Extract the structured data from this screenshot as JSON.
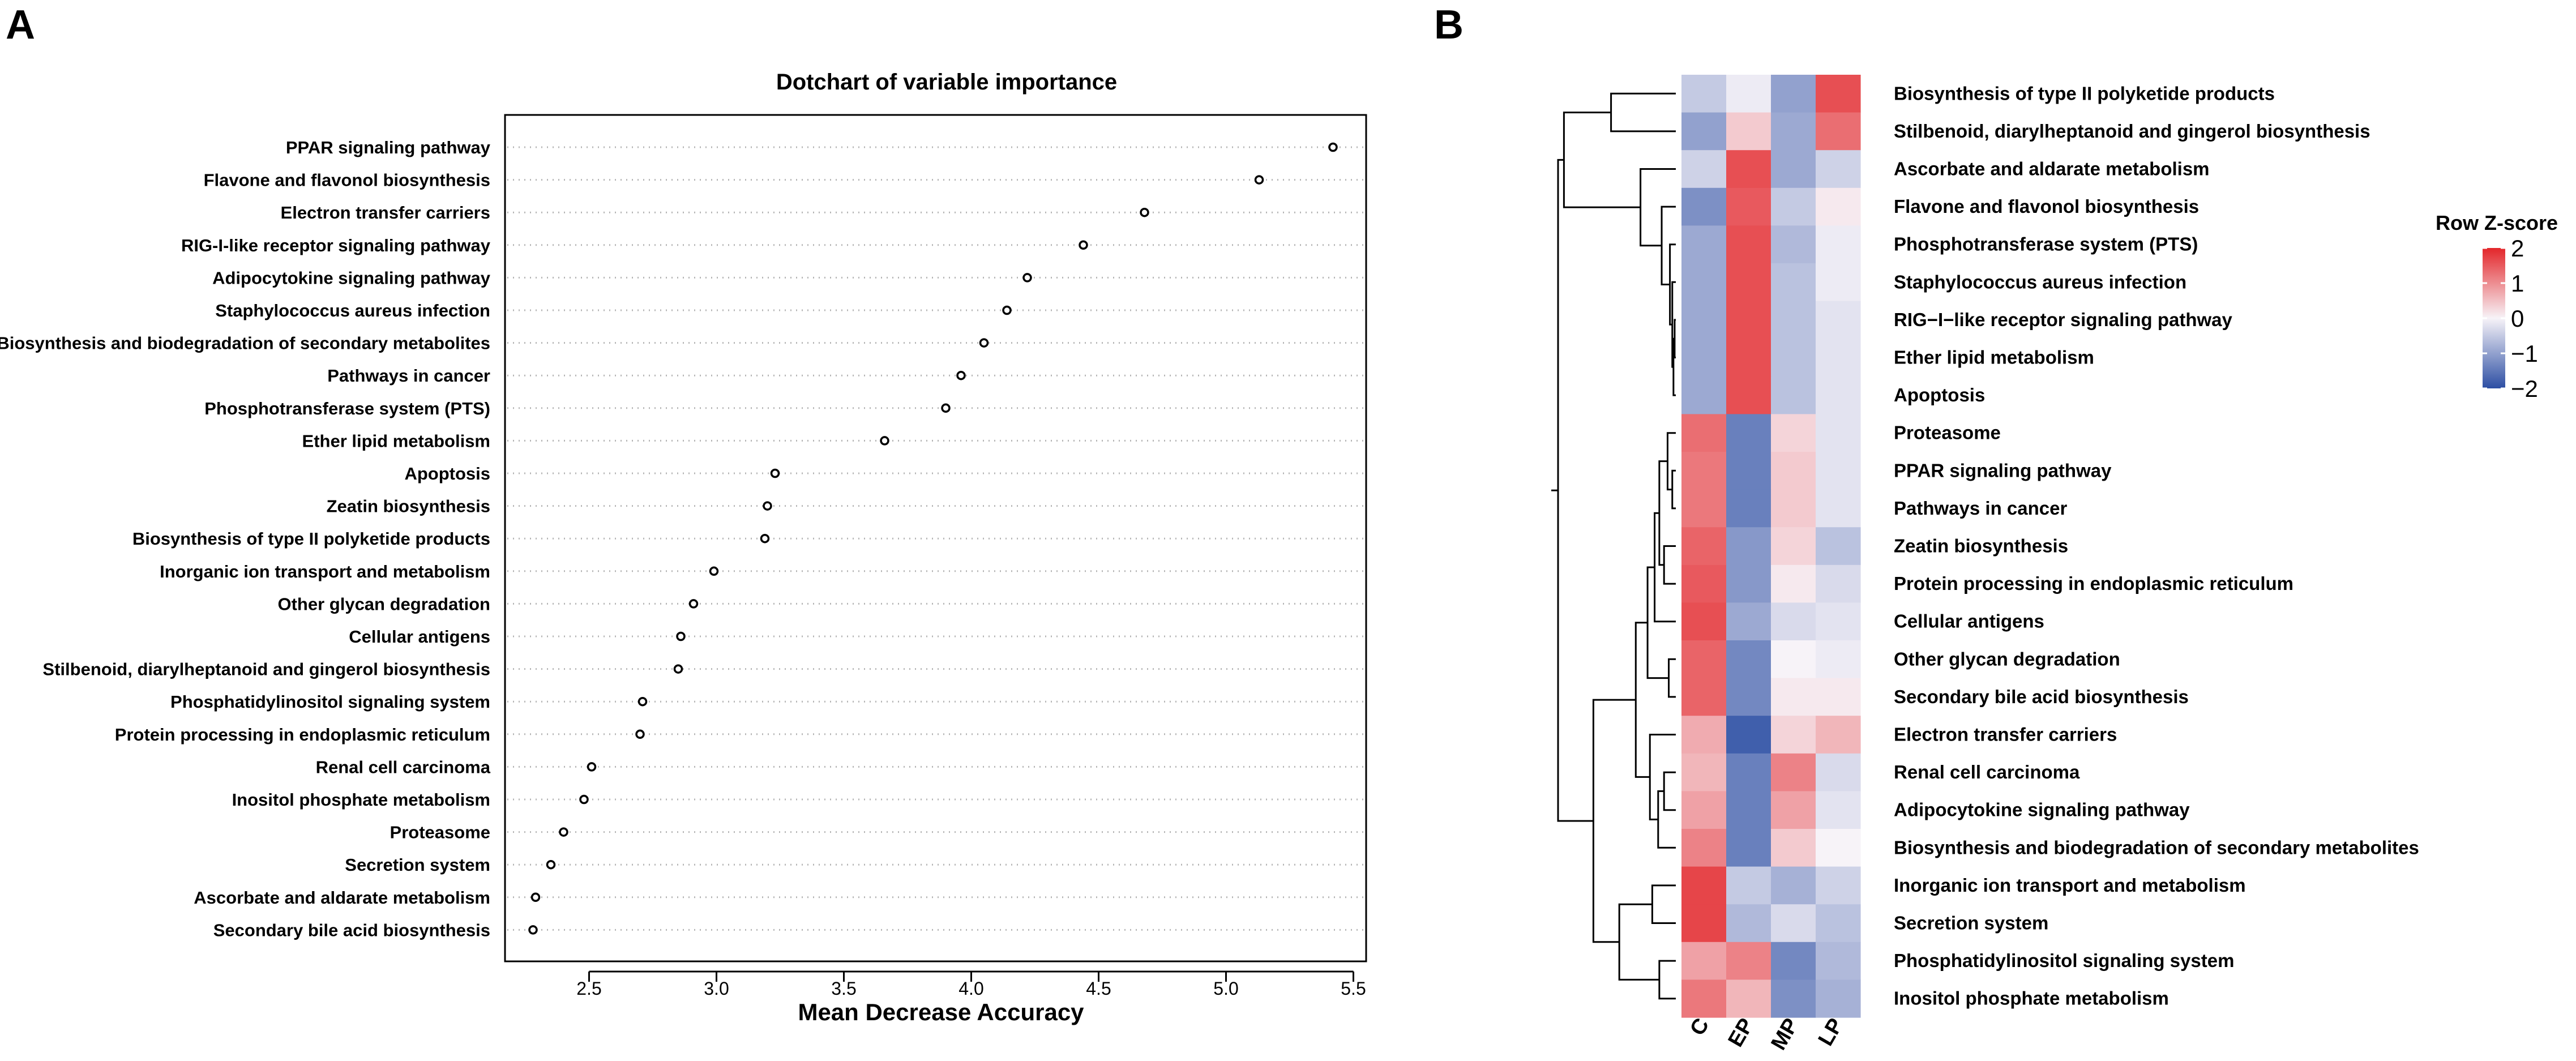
{
  "panels": {
    "a": "A",
    "b": "B"
  },
  "chart_data": [
    {
      "type": "scatter",
      "subtype": "dotchart",
      "title": "Dotchart of variable importance",
      "xlabel": "Mean Decrease Accuracy",
      "ylabel": "",
      "xlim": [
        2.17,
        5.55
      ],
      "xticks": [
        2.5,
        3.0,
        3.5,
        4.0,
        4.5,
        5.0,
        5.5
      ],
      "xtick_labels": [
        "2.5",
        "3.0",
        "3.5",
        "4.0",
        "4.5",
        "5.0",
        "5.5"
      ],
      "categories": [
        "PPAR signaling pathway",
        "Flavone and flavonol biosynthesis",
        "Electron transfer carriers",
        "RIG-I-like receptor signaling pathway",
        "Adipocytokine signaling pathway",
        "Staphylococcus aureus infection",
        "Biosynthesis and biodegradation of secondary metabolites",
        "Pathways in cancer",
        "Phosphotransferase system (PTS)",
        "Ether lipid metabolism",
        "Apoptosis",
        "Zeatin biosynthesis",
        "Biosynthesis of type II polyketide products",
        "Inorganic ion transport and metabolism",
        "Other glycan degradation",
        "Cellular antigens",
        "Stilbenoid, diarylheptanoid and gingerol biosynthesis",
        "Phosphatidylinositol signaling system",
        "Protein processing in endoplasmic reticulum",
        "Renal cell carcinoma",
        "Inositol phosphate metabolism",
        "Proteasome",
        "Secretion system",
        "Ascorbate and aldarate metabolism",
        "Secondary bile acid biosynthesis"
      ],
      "values": [
        5.42,
        5.13,
        4.68,
        4.44,
        4.22,
        4.14,
        4.05,
        3.96,
        3.9,
        3.66,
        3.23,
        3.2,
        3.19,
        2.99,
        2.91,
        2.86,
        2.85,
        2.71,
        2.7,
        2.51,
        2.48,
        2.4,
        2.35,
        2.29,
        2.28
      ]
    },
    {
      "type": "heatmap",
      "title": "",
      "columns": [
        "C",
        "EP",
        "MP",
        "LP"
      ],
      "rows": [
        "Biosynthesis of type II polyketide products",
        "Stilbenoid, diarylheptanoid and gingerol biosynthesis",
        "Ascorbate and aldarate metabolism",
        "Flavone and flavonol biosynthesis",
        "Phosphotransferase system (PTS)",
        "Staphylococcus aureus infection",
        "RIG−I−like receptor signaling pathway",
        "Ether lipid metabolism",
        "Apoptosis",
        "Proteasome",
        "PPAR signaling pathway",
        "Pathways in cancer",
        "Zeatin biosynthesis",
        "Protein processing in endoplasmic reticulum",
        "Cellular antigens",
        "Other glycan degradation",
        "Secondary bile acid biosynthesis",
        "Electron transfer carriers",
        "Renal cell carcinoma",
        "Adipocytokine signaling pathway",
        "Biosynthesis and biodegradation of secondary metabolites",
        "Inorganic ion transport and metabolism",
        "Secretion system",
        "Phosphatidylinositol signaling system",
        "Inositol phosphate metabolism"
      ],
      "values": [
        [
          -0.5,
          -0.1,
          -1.0,
          1.6
        ],
        [
          -1.0,
          0.4,
          -0.9,
          1.3
        ],
        [
          -0.4,
          1.6,
          -0.9,
          -0.4
        ],
        [
          -1.2,
          1.5,
          -0.5,
          0.1
        ],
        [
          -0.9,
          1.6,
          -0.7,
          -0.1
        ],
        [
          -0.9,
          1.6,
          -0.6,
          -0.1
        ],
        [
          -0.9,
          1.6,
          -0.6,
          -0.2
        ],
        [
          -0.9,
          1.6,
          -0.6,
          -0.2
        ],
        [
          -0.9,
          1.6,
          -0.6,
          -0.2
        ],
        [
          1.3,
          -1.4,
          0.3,
          -0.2
        ],
        [
          1.2,
          -1.4,
          0.4,
          -0.2
        ],
        [
          1.2,
          -1.4,
          0.4,
          -0.2
        ],
        [
          1.4,
          -1.1,
          0.3,
          -0.6
        ],
        [
          1.5,
          -1.1,
          0.1,
          -0.3
        ],
        [
          1.6,
          -0.9,
          -0.3,
          -0.2
        ],
        [
          1.4,
          -1.3,
          0.0,
          -0.1
        ],
        [
          1.4,
          -1.3,
          0.1,
          0.1
        ],
        [
          0.7,
          -1.8,
          0.3,
          0.6
        ],
        [
          0.6,
          -1.4,
          1.1,
          -0.3
        ],
        [
          0.8,
          -1.4,
          0.8,
          -0.2
        ],
        [
          1.1,
          -1.4,
          0.4,
          0.0
        ],
        [
          1.7,
          -0.5,
          -0.8,
          -0.4
        ],
        [
          1.7,
          -0.7,
          -0.3,
          -0.6
        ],
        [
          0.8,
          1.1,
          -1.3,
          -0.7
        ],
        [
          1.2,
          0.6,
          -1.2,
          -0.8
        ]
      ],
      "color_scale": {
        "low": "#2c4ea3",
        "mid": "#f7f3f8",
        "high": "#e3262a"
      },
      "legend": {
        "title": "Row Z-score",
        "ticks": [
          2,
          1,
          0,
          -1,
          -2
        ],
        "tick_labels": [
          "2",
          "1",
          "0",
          "−1",
          "−2"
        ],
        "placement": "right"
      },
      "row_dendrogram": true
    }
  ]
}
